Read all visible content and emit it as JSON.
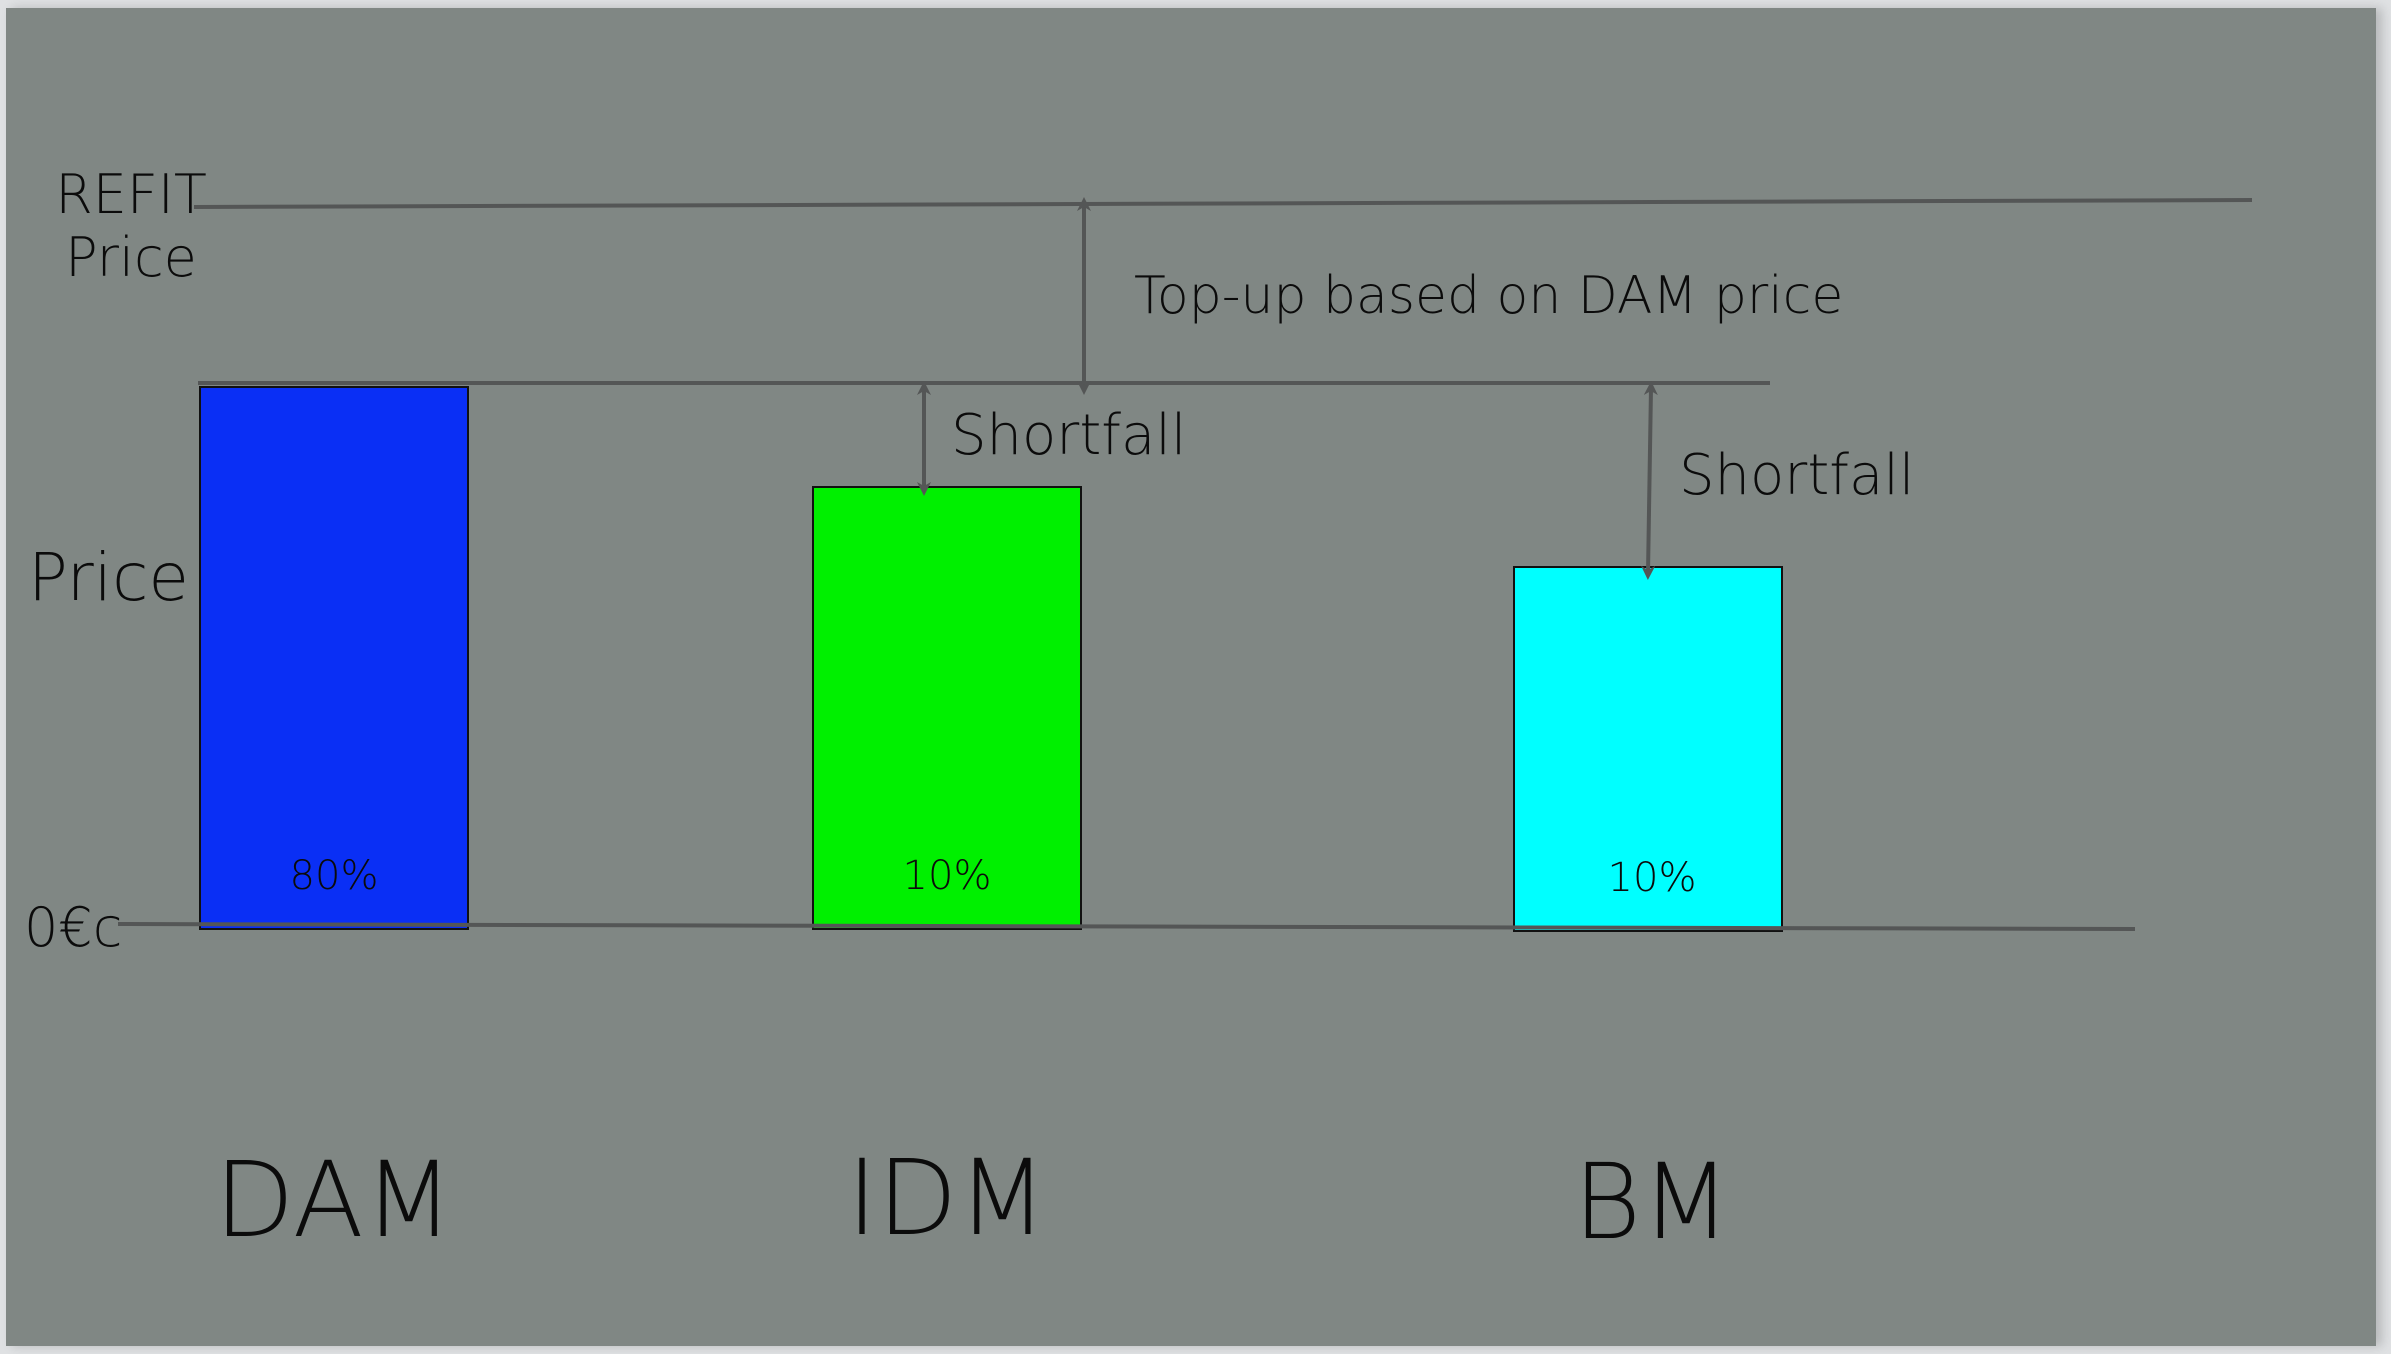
{
  "diagram": {
    "y_axis_label": "Price",
    "refit_label_line1": "REFIT",
    "refit_label_line2": "Price",
    "zero_label": "0€c",
    "top_up_label": "Top-up based on DAM price",
    "bars": [
      {
        "market": "DAM",
        "share": "80%",
        "color": "#0a2ff5"
      },
      {
        "market": "IDM",
        "share": "10%",
        "color": "#00f000"
      },
      {
        "market": "BM",
        "share": "10%",
        "color": "#00ffff"
      }
    ],
    "gaps": [
      {
        "label": "Shortfall"
      },
      {
        "label": "Shortfall"
      }
    ],
    "colors": {
      "background": "#808784",
      "line": "#545656",
      "text": "#0b0b0b"
    }
  }
}
